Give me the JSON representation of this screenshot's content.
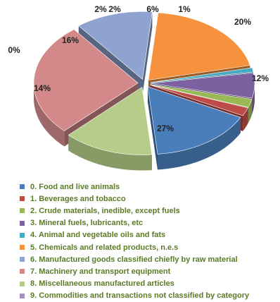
{
  "chart_data": {
    "type": "pie",
    "style": "3d-exploded",
    "slices": [
      {
        "category": "0. Food and live animals",
        "value": 16,
        "label": "16%",
        "color": "#4a7ebb"
      },
      {
        "category": "1.  Beverages and tobacco",
        "value": 2,
        "label": "2%",
        "color": "#be4b48"
      },
      {
        "category": "2. Crude materials, inedible, except fuels",
        "value": 2,
        "label": "2%",
        "color": "#98b954"
      },
      {
        "category": "3. Mineral fuels, lubricants, etc",
        "value": 6,
        "label": "6%",
        "color": "#7d60a0"
      },
      {
        "category": "4. Animal and vegetable oils and fats",
        "value": 1,
        "label": "1%",
        "color": "#46aac5"
      },
      {
        "category": "5. Chemicals and related products, n.e.s",
        "value": 20,
        "label": "20%",
        "color": "#f6923d"
      },
      {
        "category": "6. Manufactured goods classified chiefly by raw material",
        "value": 12,
        "label": "12%",
        "color": "#8ea3cf"
      },
      {
        "category": "7. Machinery and transport equipment",
        "value": 27,
        "label": "27%",
        "color": "#d3898a"
      },
      {
        "category": "8. Miscellaneous manufactured articles",
        "value": 14,
        "label": "14%",
        "color": "#b5cd88"
      },
      {
        "category": "9. Commodities and transactions not classified by category",
        "value": 0,
        "label": "0%",
        "color": "#a593bd"
      }
    ],
    "legend_position": "bottom"
  }
}
